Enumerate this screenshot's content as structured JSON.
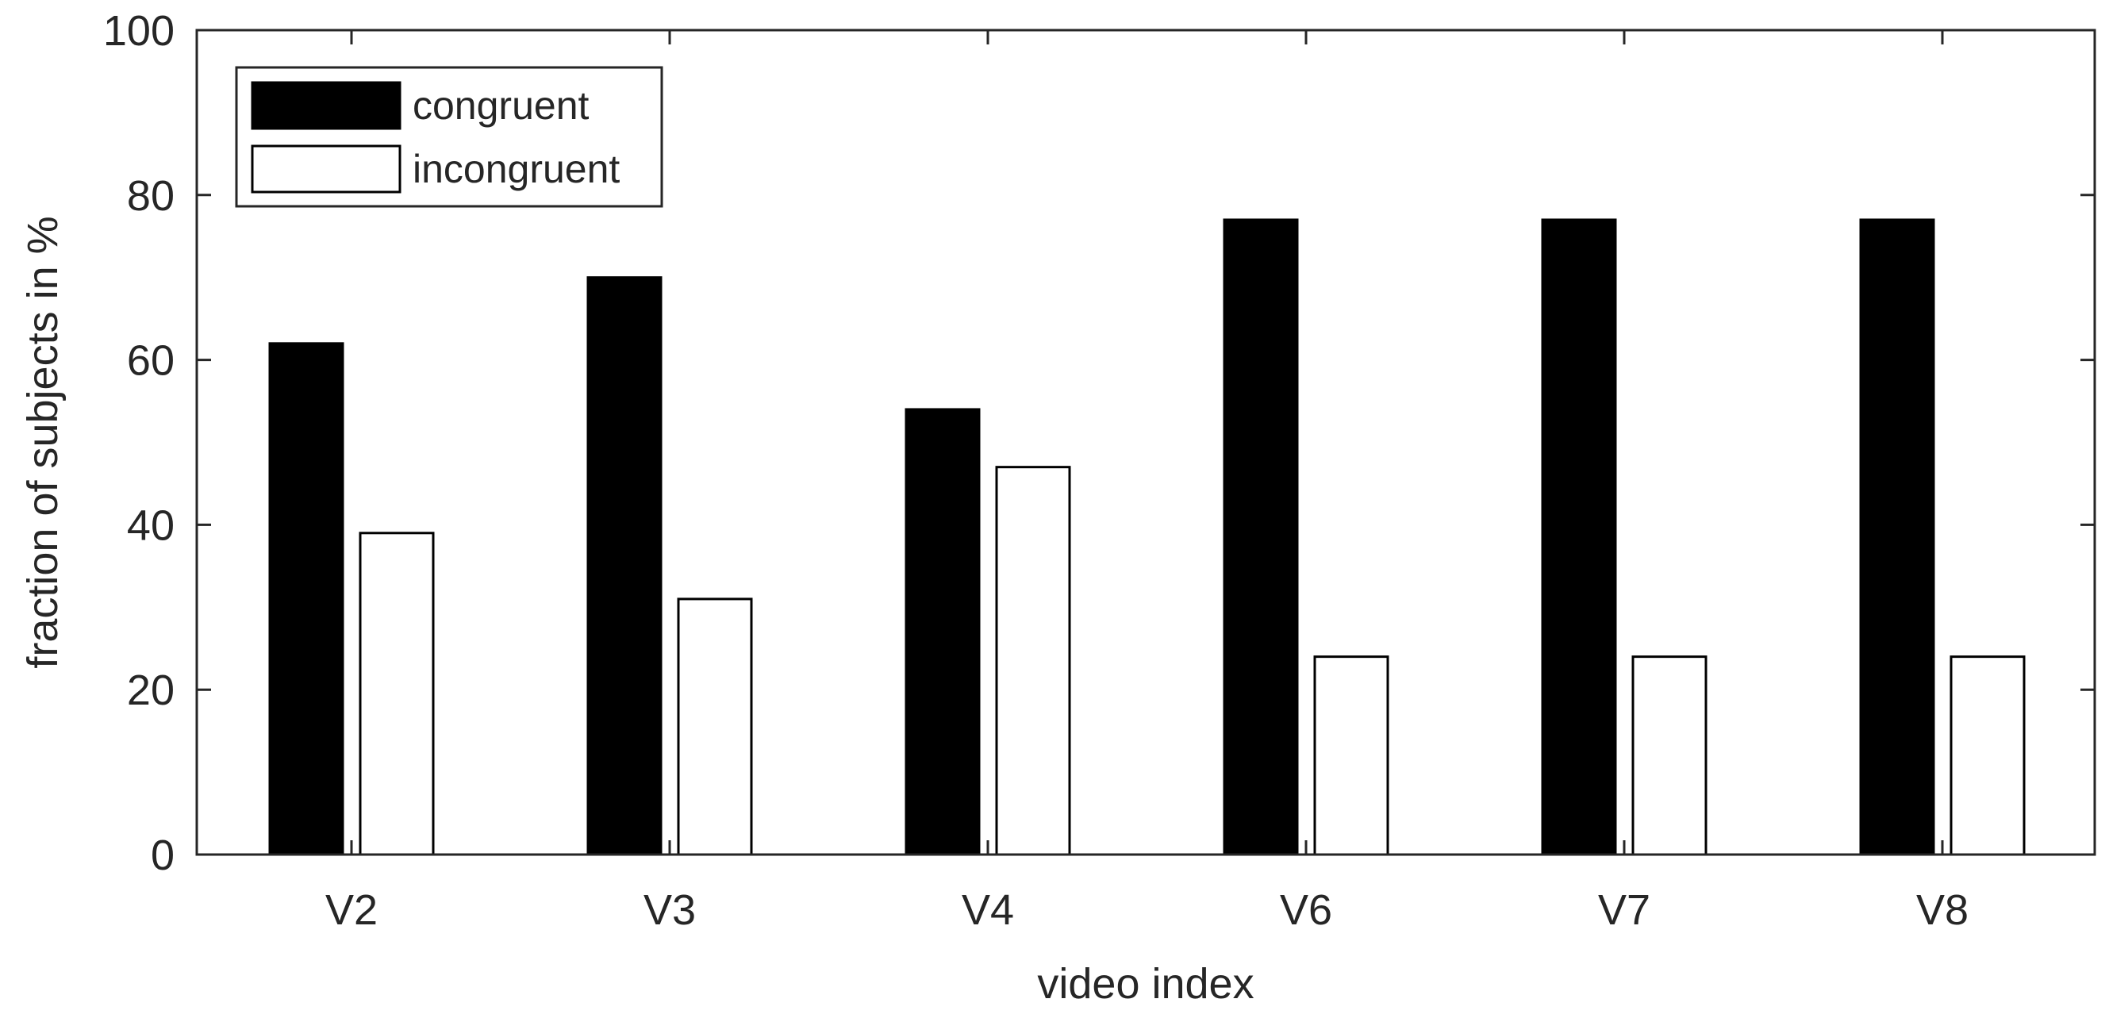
{
  "chart_data": {
    "type": "bar",
    "title": "",
    "xlabel": "video index",
    "ylabel": "fraction of subjects in %",
    "categories": [
      "V2",
      "V3",
      "V4",
      "V6",
      "V7",
      "V8"
    ],
    "series": [
      {
        "name": "congruent",
        "values": [
          62,
          70,
          54,
          77,
          77,
          77
        ],
        "color": "#000000"
      },
      {
        "name": "incongruent",
        "values": [
          39,
          31,
          47,
          24,
          24,
          24
        ],
        "color": "#ffffff"
      }
    ],
    "ylim": [
      0,
      100
    ],
    "yticks": [
      0,
      20,
      40,
      60,
      80,
      100
    ],
    "grid": false,
    "legend_position": "top-left"
  }
}
